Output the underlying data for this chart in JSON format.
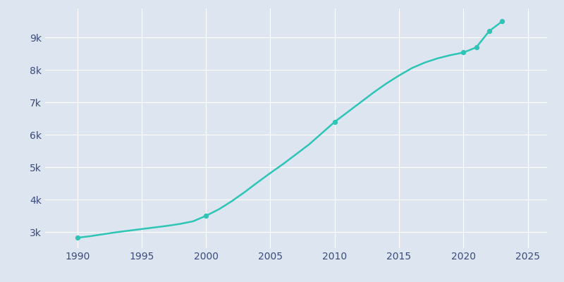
{
  "years": [
    1990,
    1991,
    1992,
    1993,
    1994,
    1995,
    1996,
    1997,
    1998,
    1999,
    2000,
    2001,
    2002,
    2003,
    2004,
    2005,
    2006,
    2007,
    2008,
    2009,
    2010,
    2011,
    2012,
    2013,
    2014,
    2015,
    2016,
    2017,
    2018,
    2019,
    2020,
    2021,
    2022,
    2023
  ],
  "population": [
    2820,
    2870,
    2930,
    2990,
    3040,
    3090,
    3140,
    3190,
    3250,
    3330,
    3500,
    3700,
    3950,
    4230,
    4530,
    4820,
    5100,
    5400,
    5700,
    6050,
    6400,
    6700,
    7000,
    7300,
    7580,
    7830,
    8060,
    8230,
    8360,
    8460,
    8540,
    8700,
    9200,
    9500
  ],
  "dot_years": [
    1990,
    2000,
    2010,
    2020,
    2021,
    2022,
    2023
  ],
  "dot_populations": [
    2820,
    3500,
    6400,
    8540,
    8700,
    9200,
    9500
  ],
  "line_color": "#2ec4b6",
  "dot_color": "#2ec4b6",
  "background_color": "#dde6f0",
  "axes_background_color": "#dde6f0",
  "grid_color": "#ffffff",
  "tick_label_color": "#3a4a7a",
  "ytick_labels": [
    "3k",
    "4k",
    "5k",
    "6k",
    "7k",
    "8k",
    "9k"
  ],
  "ytick_values": [
    3000,
    4000,
    5000,
    6000,
    7000,
    8000,
    9000
  ],
  "xtick_values": [
    1990,
    1995,
    2000,
    2005,
    2010,
    2015,
    2020,
    2025
  ],
  "xlim": [
    1987.5,
    2026.5
  ],
  "ylim": [
    2500,
    9900
  ],
  "line_width": 1.8,
  "dot_size": 18,
  "figsize": [
    8.0,
    4.0
  ],
  "dpi": 100
}
